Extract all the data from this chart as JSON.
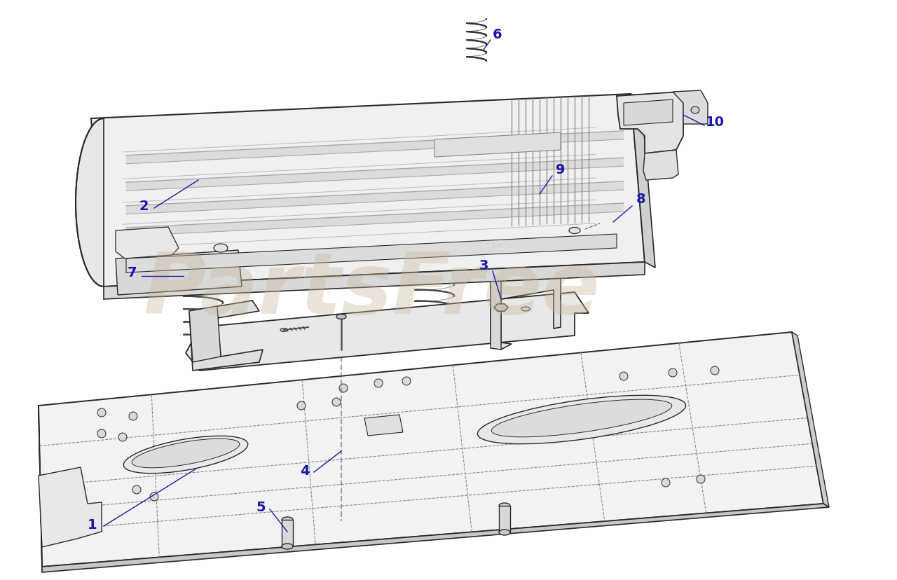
{
  "background_color": "#ffffff",
  "watermark_text": "PartsFree",
  "watermark_tm": "™",
  "watermark_color": "#c8b89a",
  "watermark_alpha": 0.38,
  "label_color": "#1a1aaa",
  "line_color": "#2a2a2a",
  "figsize": [
    12.8,
    8.29
  ],
  "dpi": 100
}
